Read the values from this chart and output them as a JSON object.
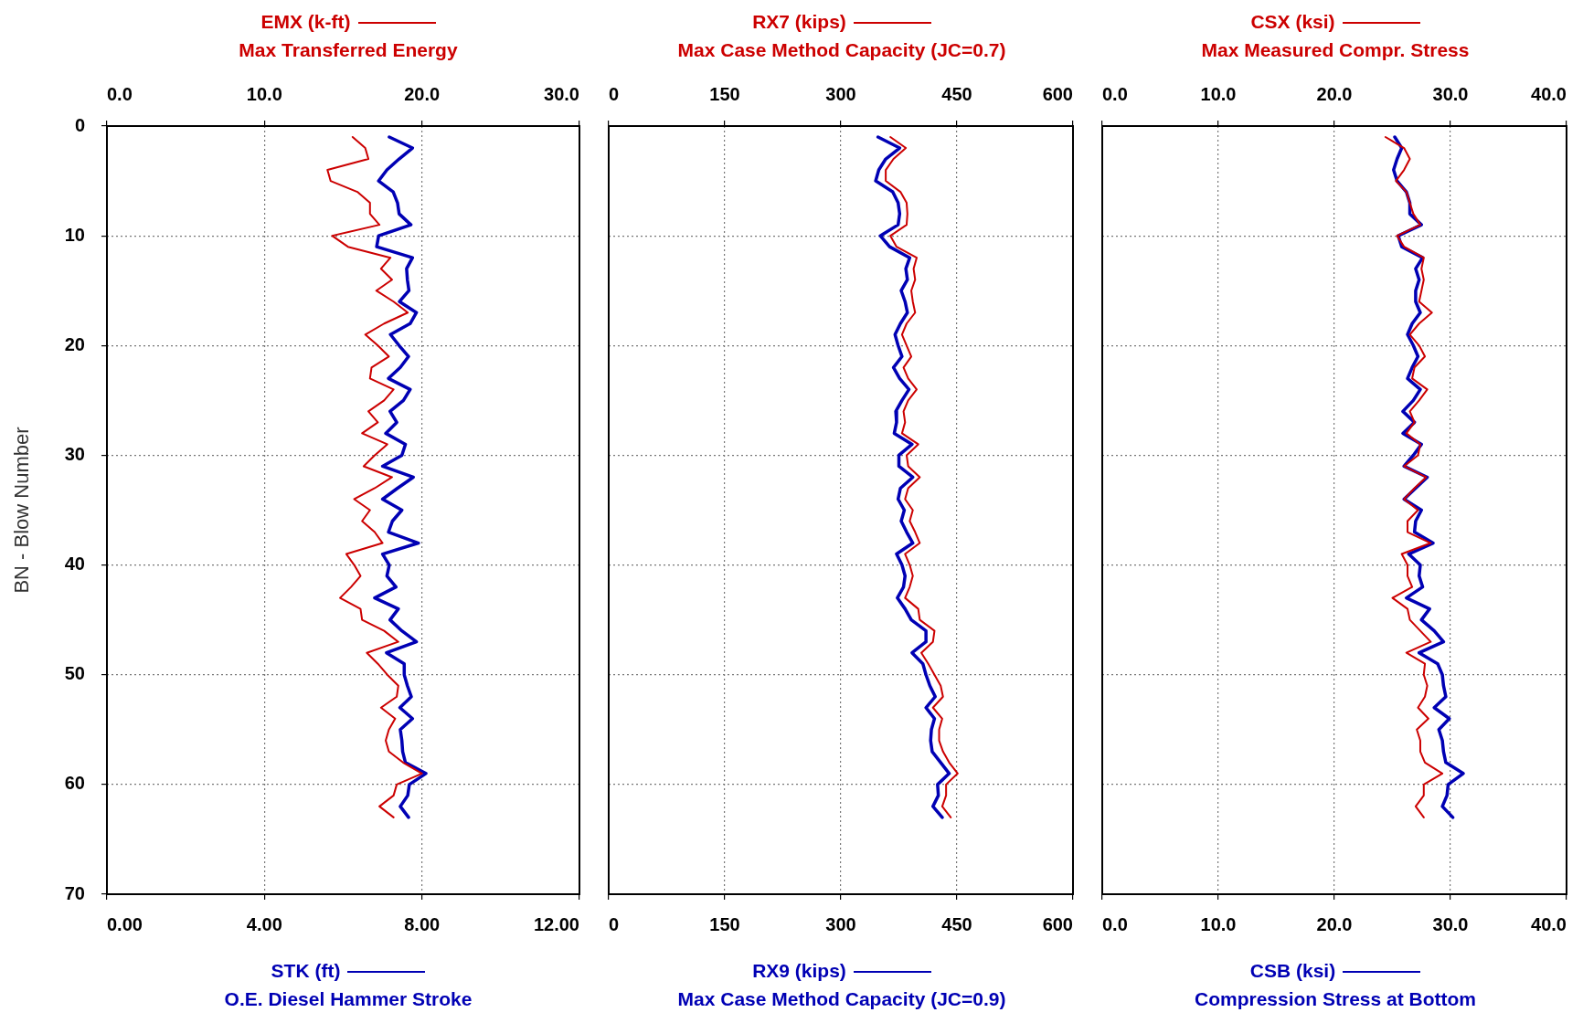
{
  "chart_data": [
    {
      "type": "line",
      "x2label": "Max Transferred Energy",
      "xlabel": "O.E. Diesel Hammer Stroke",
      "ylabel": "BN - Blow Number",
      "x2lim": [
        0,
        30
      ],
      "x2ticks": [
        {
          "value": 0,
          "label": "0.0"
        },
        {
          "value": 10,
          "label": "10.0"
        },
        {
          "value": 20,
          "label": "20.0"
        },
        {
          "value": 30,
          "label": "30.0"
        }
      ],
      "xlim": [
        0,
        12
      ],
      "xticks": [
        {
          "value": 0,
          "label": "0.00"
        },
        {
          "value": 4,
          "label": "4.00"
        },
        {
          "value": 8,
          "label": "8.00"
        },
        {
          "value": 12,
          "label": "12.00"
        }
      ],
      "ylim": [
        70,
        0
      ],
      "yticks": [
        0,
        10,
        20,
        30,
        40,
        50,
        60,
        70
      ],
      "grid": true,
      "legend": "top",
      "series": [
        {
          "name": "EMX (k-ft)",
          "color": "#cc0000",
          "axis": "x2",
          "x": [
            15.6,
            16.4,
            16.6,
            14.0,
            14.2,
            15.9,
            16.7,
            16.7,
            17.3,
            14.3,
            15.3,
            18.0,
            17.4,
            18.1,
            17.1,
            18.2,
            19.1,
            17.6,
            16.4,
            17.2,
            17.9,
            16.8,
            16.7,
            18.2,
            17.6,
            16.6,
            17.2,
            16.2,
            17.8,
            17.0,
            16.3,
            18.1,
            17.0,
            15.7,
            16.7,
            16.2,
            17.0,
            17.5,
            15.2,
            15.7,
            16.1,
            15.5,
            14.8,
            16.1,
            16.2,
            17.6,
            18.5,
            16.5,
            17.2,
            17.8,
            18.5,
            18.4,
            17.4,
            18.3,
            17.9,
            17.7,
            17.9,
            18.8,
            20.0,
            18.4,
            18.2,
            17.3,
            18.2
          ],
          "values": [
            1,
            2,
            3,
            4,
            5,
            6,
            7,
            8,
            9,
            10,
            11,
            12,
            13,
            14,
            15,
            16,
            17,
            18,
            19,
            20,
            21,
            22,
            23,
            24,
            25,
            26,
            27,
            28,
            29,
            30,
            31,
            32,
            33,
            34,
            35,
            36,
            37,
            38,
            39,
            40,
            41,
            42,
            43,
            44,
            45,
            46,
            47,
            48,
            49,
            50,
            51,
            52,
            53,
            54,
            55,
            56,
            57,
            58,
            59,
            60,
            61,
            62,
            63
          ]
        },
        {
          "name": "STK (ft)",
          "color": "#0000b4",
          "x": [
            7.17,
            7.76,
            7.42,
            7.11,
            6.9,
            7.27,
            7.38,
            7.42,
            7.72,
            6.9,
            6.85,
            7.76,
            7.61,
            7.63,
            7.67,
            7.43,
            7.86,
            7.7,
            7.2,
            7.42,
            7.66,
            7.45,
            7.15,
            7.7,
            7.53,
            7.19,
            7.36,
            7.08,
            7.58,
            7.49,
            7.0,
            7.78,
            7.38,
            7.0,
            7.49,
            7.25,
            7.15,
            7.91,
            7.0,
            7.17,
            7.11,
            7.34,
            6.8,
            7.4,
            7.19,
            7.49,
            7.86,
            7.1,
            7.55,
            7.55,
            7.63,
            7.73,
            7.44,
            7.76,
            7.45,
            7.49,
            7.51,
            7.58,
            8.1,
            7.68,
            7.64,
            7.45,
            7.66
          ],
          "values": [
            1,
            2,
            3,
            4,
            5,
            6,
            7,
            8,
            9,
            10,
            11,
            12,
            13,
            14,
            15,
            16,
            17,
            18,
            19,
            20,
            21,
            22,
            23,
            24,
            25,
            26,
            27,
            28,
            29,
            30,
            31,
            32,
            33,
            34,
            35,
            36,
            37,
            38,
            39,
            40,
            41,
            42,
            43,
            44,
            45,
            46,
            47,
            48,
            49,
            50,
            51,
            52,
            53,
            54,
            55,
            56,
            57,
            58,
            59,
            60,
            61,
            62,
            63
          ]
        }
      ]
    },
    {
      "type": "line",
      "x2label": "Max Case Method Capacity (JC=0.7)",
      "xlabel": "Max Case Method Capacity (JC=0.9)",
      "x2lim": [
        0,
        600
      ],
      "x2ticks": [
        0,
        150,
        300,
        450,
        600
      ],
      "xlim": [
        0,
        600
      ],
      "xticks": [
        0,
        150,
        300,
        450,
        600
      ],
      "ylim": [
        70,
        0
      ],
      "yticks": [
        0,
        10,
        20,
        30,
        40,
        50,
        60,
        70
      ],
      "grid": true,
      "tick_labels": "x",
      "legend": "top",
      "series": [
        {
          "name": "RX7 (kips)",
          "color": "#cc0000",
          "axis": "x2",
          "x": [
            364,
            384,
            368,
            358,
            358,
            377,
            385,
            386,
            385,
            364,
            372,
            398,
            394,
            396,
            391,
            393,
            396,
            385,
            379,
            385,
            391,
            381,
            387,
            398,
            387,
            381,
            383,
            379,
            400,
            385,
            387,
            402,
            387,
            383,
            393,
            389,
            396,
            402,
            383,
            389,
            393,
            389,
            383,
            400,
            402,
            421,
            419,
            404,
            413,
            421,
            429,
            432,
            419,
            431,
            427,
            427,
            432,
            440,
            451,
            436,
            436,
            431,
            442
          ],
          "values": [
            1,
            2,
            3,
            4,
            5,
            6,
            7,
            8,
            9,
            10,
            11,
            12,
            13,
            14,
            15,
            16,
            17,
            18,
            19,
            20,
            21,
            22,
            23,
            24,
            25,
            26,
            27,
            28,
            29,
            30,
            31,
            32,
            33,
            34,
            35,
            36,
            37,
            38,
            39,
            40,
            41,
            42,
            43,
            44,
            45,
            46,
            47,
            48,
            49,
            50,
            51,
            52,
            53,
            54,
            55,
            56,
            57,
            58,
            59,
            60,
            61,
            62,
            63
          ]
        },
        {
          "name": "RX9 (kips)",
          "color": "#0000b4",
          "x": [
            348,
            376,
            358,
            349,
            345,
            367,
            374,
            376,
            374,
            351,
            363,
            389,
            384,
            386,
            378,
            383,
            386,
            377,
            370,
            374,
            379,
            368,
            376,
            388,
            379,
            371,
            372,
            369,
            392,
            375,
            375,
            393,
            377,
            374,
            382,
            378,
            385,
            393,
            372,
            379,
            383,
            381,
            373,
            383,
            391,
            410,
            410,
            392,
            406,
            410,
            415,
            422,
            410,
            421,
            417,
            416,
            418,
            429,
            440,
            425,
            426,
            419,
            431
          ],
          "values": [
            1,
            2,
            3,
            4,
            5,
            6,
            7,
            8,
            9,
            10,
            11,
            12,
            13,
            14,
            15,
            16,
            17,
            18,
            19,
            20,
            21,
            22,
            23,
            24,
            25,
            26,
            27,
            28,
            29,
            30,
            31,
            32,
            33,
            34,
            35,
            36,
            37,
            38,
            39,
            40,
            41,
            42,
            43,
            44,
            45,
            46,
            47,
            48,
            49,
            50,
            51,
            52,
            53,
            54,
            55,
            56,
            57,
            58,
            59,
            60,
            61,
            62,
            63
          ]
        }
      ]
    },
    {
      "type": "line",
      "x2label": "Max Measured Compr. Stress",
      "xlabel": "Compression Stress at Bottom",
      "x2lim": [
        0,
        40
      ],
      "x2ticks": [
        {
          "value": 0,
          "label": "0.0"
        },
        {
          "value": 10,
          "label": "10.0"
        },
        {
          "value": 20,
          "label": "20.0"
        },
        {
          "value": 30,
          "label": "30.0"
        },
        {
          "value": 40,
          "label": "40.0"
        }
      ],
      "xlim": [
        0,
        40
      ],
      "xticks": [
        {
          "value": 0,
          "label": "0.0"
        },
        {
          "value": 10,
          "label": "10.0"
        },
        {
          "value": 20,
          "label": "20.0"
        },
        {
          "value": 30,
          "label": "30.0"
        },
        {
          "value": 40,
          "label": "40.0"
        }
      ],
      "ylim": [
        70,
        0
      ],
      "yticks": [
        0,
        10,
        20,
        30,
        40,
        50,
        60,
        70
      ],
      "grid": true,
      "tick_labels": "x",
      "legend": "top",
      "series": [
        {
          "name": "CSX (ksi)",
          "color": "#cc0000",
          "axis": "x2",
          "x": [
            24.4,
            26.0,
            26.5,
            26.0,
            25.3,
            26.2,
            26.5,
            26.8,
            27.4,
            25.4,
            26.0,
            27.7,
            27.5,
            27.7,
            27.5,
            27.3,
            28.4,
            27.3,
            26.5,
            27.3,
            27.8,
            26.9,
            26.7,
            28.0,
            27.3,
            26.5,
            26.9,
            26.2,
            27.4,
            27.2,
            26.0,
            27.9,
            26.9,
            26.0,
            27.2,
            26.3,
            26.3,
            28.3,
            25.8,
            26.3,
            26.3,
            26.7,
            25.0,
            26.3,
            26.5,
            27.4,
            28.3,
            26.2,
            27.8,
            27.7,
            28.0,
            27.8,
            27.2,
            28.1,
            27.1,
            27.4,
            27.4,
            27.8,
            29.3,
            27.7,
            27.7,
            27.0,
            27.7
          ],
          "values": [
            1,
            2,
            3,
            4,
            5,
            6,
            7,
            8,
            9,
            10,
            11,
            12,
            13,
            14,
            15,
            16,
            17,
            18,
            19,
            20,
            21,
            22,
            23,
            24,
            25,
            26,
            27,
            28,
            29,
            30,
            31,
            32,
            33,
            34,
            35,
            36,
            37,
            38,
            39,
            40,
            41,
            42,
            43,
            44,
            45,
            46,
            47,
            48,
            49,
            50,
            51,
            52,
            53,
            54,
            55,
            56,
            57,
            58,
            59,
            60,
            61,
            62,
            63
          ]
        },
        {
          "name": "CSB (ksi)",
          "color": "#0000b4",
          "x": [
            25.2,
            25.8,
            25.4,
            25.1,
            25.4,
            26.2,
            26.5,
            26.5,
            27.5,
            25.5,
            25.8,
            27.6,
            27.0,
            27.3,
            27.0,
            27.0,
            27.4,
            26.7,
            26.3,
            26.8,
            27.2,
            26.7,
            26.3,
            27.4,
            26.8,
            25.9,
            26.9,
            25.9,
            27.5,
            26.8,
            26.0,
            28.0,
            27.0,
            26.0,
            27.5,
            27.0,
            26.9,
            28.5,
            26.4,
            27.4,
            27.3,
            27.6,
            26.2,
            28.2,
            27.5,
            28.6,
            29.4,
            27.3,
            28.9,
            29.3,
            29.4,
            29.6,
            28.6,
            29.9,
            29.0,
            29.3,
            29.4,
            29.6,
            31.1,
            29.8,
            29.7,
            29.3,
            30.2
          ],
          "values": [
            1,
            2,
            3,
            4,
            5,
            6,
            7,
            8,
            9,
            10,
            11,
            12,
            13,
            14,
            15,
            16,
            17,
            18,
            19,
            20,
            21,
            22,
            23,
            24,
            25,
            26,
            27,
            28,
            29,
            30,
            31,
            32,
            33,
            34,
            35,
            36,
            37,
            38,
            39,
            40,
            41,
            42,
            43,
            44,
            45,
            46,
            47,
            48,
            49,
            50,
            51,
            52,
            53,
            54,
            55,
            56,
            57,
            58,
            59,
            60,
            61,
            62,
            63
          ]
        }
      ]
    }
  ]
}
